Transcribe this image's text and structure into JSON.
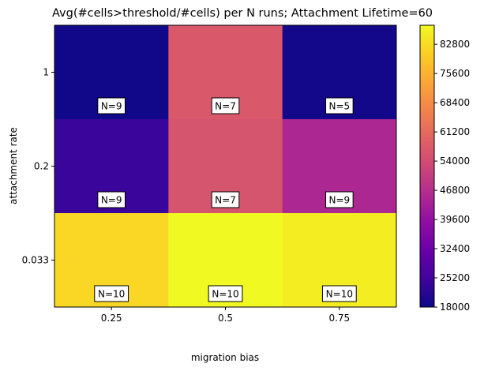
{
  "chart_data": {
    "type": "heatmap",
    "title": "Avg(#cells>threshold/#cells) per N runs; Attachment Lifetime=60",
    "xlabel": "migration bias",
    "ylabel": "attachment rate",
    "x_categories": [
      "0.25",
      "0.5",
      "0.75"
    ],
    "y_categories": [
      "1",
      "0.2",
      "0.033"
    ],
    "values": [
      [
        18500,
        57000,
        18700
      ],
      [
        24000,
        56000,
        45000
      ],
      [
        82000,
        87500,
        85500
      ]
    ],
    "annotations": [
      [
        "N=9",
        "N=7",
        "N=5"
      ],
      [
        "N=9",
        "N=7",
        "N=9"
      ],
      [
        "N=10",
        "N=10",
        "N=10"
      ]
    ],
    "colorbar": {
      "min": 18000,
      "max": 87500,
      "colormap": "plasma",
      "ticks": [
        "18000",
        "25200",
        "32400",
        "39600",
        "46800",
        "54000",
        "61200",
        "68400",
        "75600",
        "82800"
      ]
    },
    "grid": false,
    "legend": "none"
  }
}
